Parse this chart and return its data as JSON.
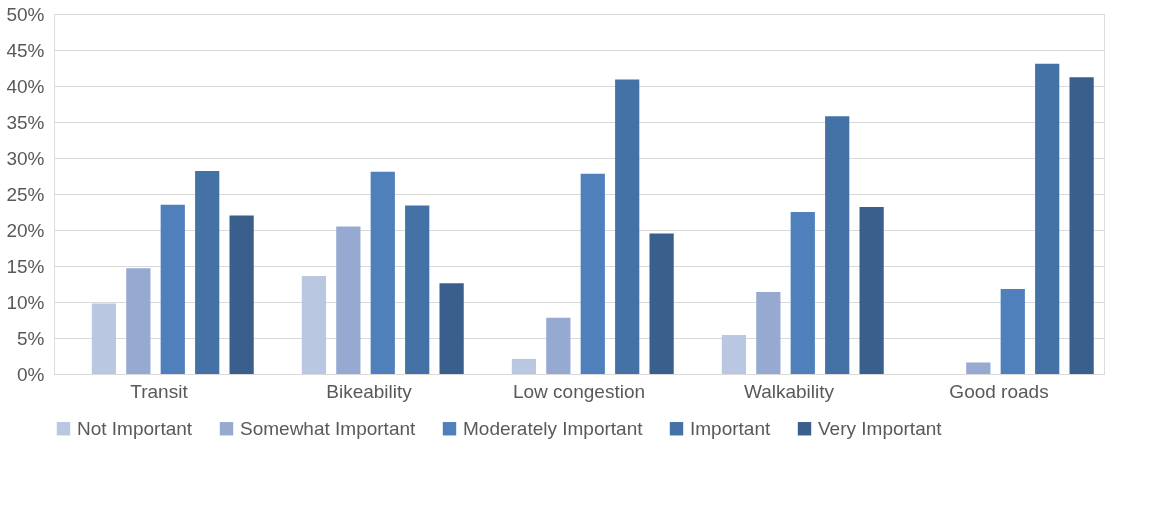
{
  "chart_data": {
    "type": "bar",
    "categories": [
      "Transit",
      "Bikeability",
      "Low congestion",
      "Walkability",
      "Good roads"
    ],
    "series": [
      {
        "name": "Not Important",
        "color": "#bac7e1",
        "values": [
          9.8,
          13.6,
          2.1,
          5.4,
          0
        ]
      },
      {
        "name": "Somewhat Important",
        "color": "#95a9d1",
        "values": [
          14.7,
          20.5,
          7.8,
          11.4,
          1.6
        ]
      },
      {
        "name": "Moderately Important",
        "color": "#4f80bc",
        "values": [
          23.5,
          28.1,
          27.8,
          22.5,
          11.8
        ]
      },
      {
        "name": "Important",
        "color": "#4472a6",
        "values": [
          28.2,
          23.4,
          40.9,
          35.8,
          43.1
        ]
      },
      {
        "name": "Very Important",
        "color": "#3a5f8c",
        "values": [
          22.0,
          12.6,
          19.5,
          23.2,
          41.2
        ]
      }
    ],
    "ylim": [
      0,
      50
    ],
    "yticks": [
      {
        "value": 0,
        "label": "0%"
      },
      {
        "value": 5,
        "label": "5%"
      },
      {
        "value": 10,
        "label": "10%"
      },
      {
        "value": 15,
        "label": "15%"
      },
      {
        "value": 20,
        "label": "20%"
      },
      {
        "value": 25,
        "label": "25%"
      },
      {
        "value": 30,
        "label": "30%"
      },
      {
        "value": 35,
        "label": "35%"
      },
      {
        "value": 40,
        "label": "40%"
      },
      {
        "value": 45,
        "label": "45%"
      },
      {
        "value": 50,
        "label": "50%"
      }
    ],
    "grid": "y",
    "legend": "bottom"
  }
}
